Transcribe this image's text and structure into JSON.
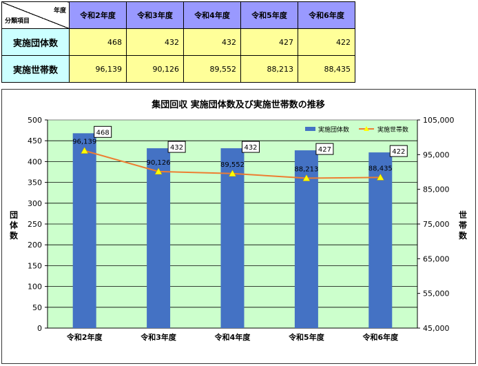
{
  "table": {
    "corner_top": "年度",
    "corner_bottom": "分類項目",
    "years": [
      "令和2年度",
      "令和3年度",
      "令和4年度",
      "令和5年度",
      "令和6年度"
    ],
    "rows": [
      {
        "label": "実施団体数",
        "values": [
          "468",
          "432",
          "432",
          "427",
          "422"
        ]
      },
      {
        "label": "実施世帯数",
        "values": [
          "96,139",
          "90,126",
          "89,552",
          "88,213",
          "88,435"
        ]
      }
    ]
  },
  "chart_data": {
    "type": "bar",
    "title": "集団回収 実施団体数及び実施世帯数の推移",
    "categories": [
      "令和2年度",
      "令和3年度",
      "令和4年度",
      "令和5年度",
      "令和6年度"
    ],
    "series": [
      {
        "name": "実施団体数",
        "type": "bar",
        "axis": "left",
        "values": [
          468,
          432,
          432,
          427,
          422
        ],
        "labels": [
          "468",
          "432",
          "432",
          "427",
          "422"
        ],
        "color": "#4472c4"
      },
      {
        "name": "実施世帯数",
        "type": "line",
        "axis": "right",
        "values": [
          96139,
          90126,
          89552,
          88213,
          88435
        ],
        "labels": [
          "96,139",
          "90,126",
          "89,552",
          "88,213",
          "88,435"
        ],
        "color": "#ed7d31",
        "marker_color": "#ffff00"
      }
    ],
    "y_left": {
      "label": "団体数",
      "range": [
        0,
        500
      ],
      "ticks": [
        "0",
        "50",
        "100",
        "150",
        "200",
        "250",
        "300",
        "350",
        "400",
        "450",
        "500"
      ]
    },
    "y_right": {
      "label": "世帯数",
      "range": [
        45000,
        105000
      ],
      "ticks": [
        "45,000",
        "55,000",
        "65,000",
        "75,000",
        "85,000",
        "95,000",
        "105,000"
      ]
    },
    "grid": true,
    "legend_position": "top-right",
    "plot_background": "#ccffcc"
  }
}
